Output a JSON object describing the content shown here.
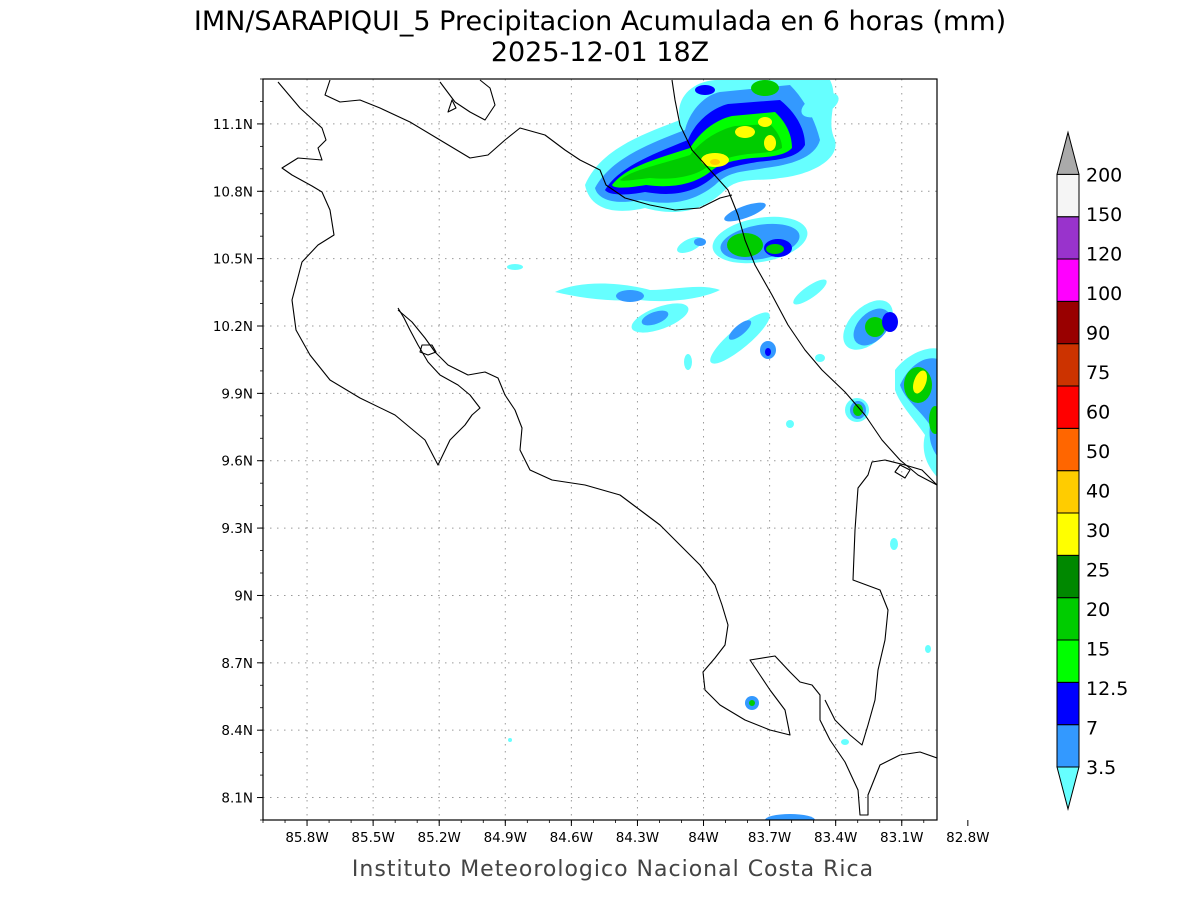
{
  "title": {
    "line1": "IMN/SARAPIQUI_5 Precipitacion Acumulada en 6 horas (mm)",
    "line2": "2025-12-01 18Z"
  },
  "credit": "Instituto Meteorologico Nacional Costa Rica",
  "axes": {
    "lon_range": [
      -86.0,
      -82.94
    ],
    "lat_range": [
      8.0,
      11.3
    ],
    "x_ticks": [
      "85.8W",
      "85.5W",
      "85.2W",
      "84.9W",
      "84.6W",
      "84.3W",
      "84W",
      "83.7W",
      "83.4W",
      "83.1W",
      "82.8W"
    ],
    "x_tick_values": [
      -85.8,
      -85.5,
      -85.2,
      -84.9,
      -84.6,
      -84.3,
      -84.0,
      -83.7,
      -83.4,
      -83.1,
      -82.8
    ],
    "y_ticks": [
      "8.1N",
      "8.4N",
      "8.7N",
      "9N",
      "9.3N",
      "9.6N",
      "9.9N",
      "10.2N",
      "10.5N",
      "10.8N",
      "11.1N"
    ],
    "y_tick_values": [
      8.1,
      8.4,
      8.7,
      9.0,
      9.3,
      9.6,
      9.9,
      10.2,
      10.5,
      10.8,
      11.1
    ],
    "grid": "dotted"
  },
  "colorbar": {
    "levels": [
      "3.5",
      "7",
      "12.5",
      "15",
      "20",
      "25",
      "30",
      "40",
      "50",
      "60",
      "75",
      "90",
      "100",
      "120",
      "150",
      "200"
    ],
    "colors": [
      "#66ffff",
      "#3399ff",
      "#0000ff",
      "#00ff00",
      "#00cc00",
      "#008800",
      "#ffff00",
      "#ffcc00",
      "#ff6600",
      "#ff0000",
      "#cc3300",
      "#990000",
      "#ff00ff",
      "#9933cc",
      "#f5f5f5",
      "#aaaaaa"
    ],
    "extend": "both"
  }
}
